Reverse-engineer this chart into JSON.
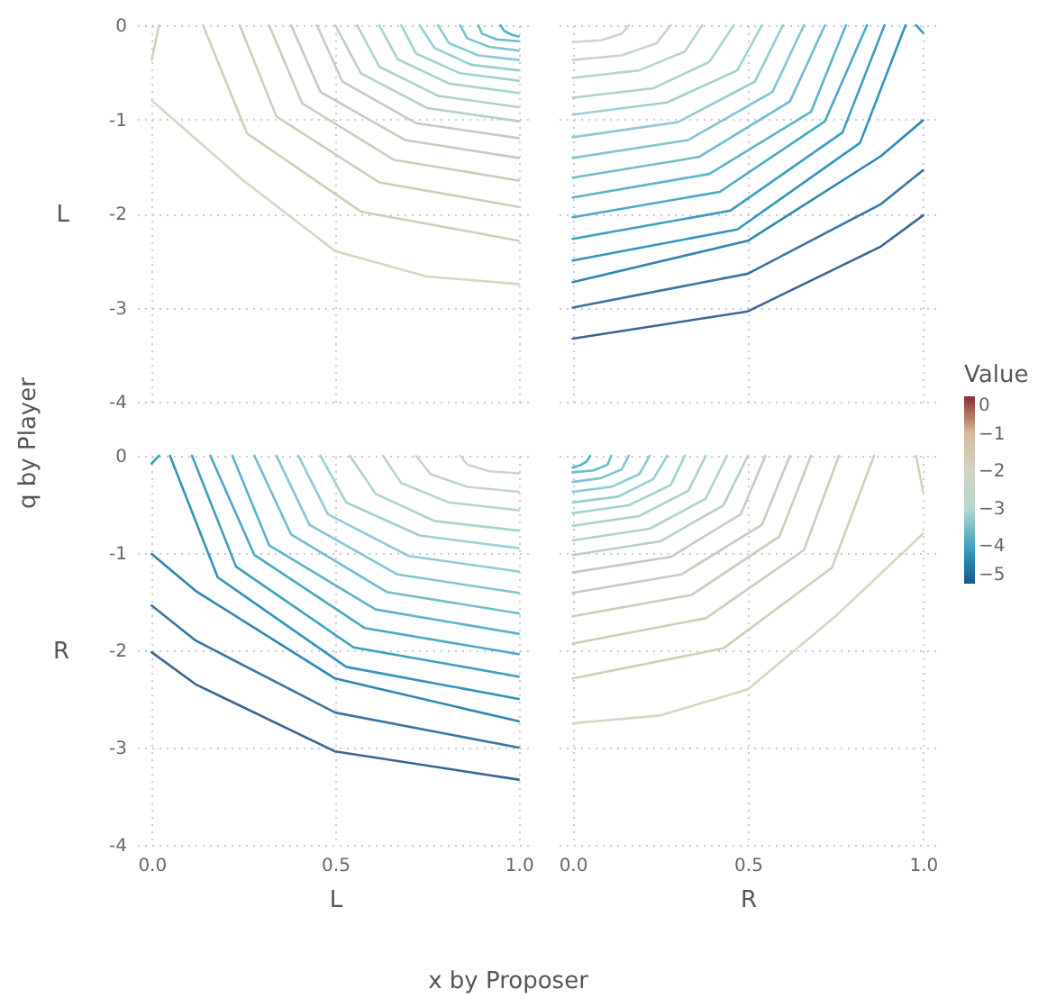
{
  "chart_data": [
    {
      "type": "line",
      "ylabel": "L",
      "xlim": [
        -0.04,
        1.04
      ],
      "ylim": [
        -4,
        0
      ],
      "xticks": [
        {
          "value": 0,
          "label": null
        },
        {
          "value": 0.5,
          "label": null
        },
        {
          "value": 1,
          "label": null
        }
      ],
      "yticks": [
        -4,
        -3,
        -2,
        -1,
        0
      ],
      "tick_labels": "y",
      "grid": true,
      "annotations": [
        "q by Player",
        "x by Proposer"
      ],
      "series": [
        {
          "color": "#ddd4c2",
          "x": [
            0,
            0.25,
            0.5,
            0.75,
            1
          ],
          "values": [
            -0.8,
            -1.65,
            -2.4,
            -2.67,
            -2.75
          ]
        },
        {
          "color": "#d8cfba",
          "x": [
            0,
            0.02
          ],
          "values": [
            -0.37,
            0
          ]
        },
        {
          "color": "#d4cdb8",
          "x": [
            0.14,
            0.26,
            0.57,
            1
          ],
          "values": [
            0,
            -1.15,
            -1.98,
            -2.29
          ]
        },
        {
          "color": "#d0cdb9",
          "x": [
            0.24,
            0.34,
            0.62,
            1
          ],
          "values": [
            0,
            -0.97,
            -1.67,
            -1.93
          ]
        },
        {
          "color": "#cccdbb",
          "x": [
            0.32,
            0.41,
            0.66,
            1
          ],
          "values": [
            0,
            -0.83,
            -1.43,
            -1.65
          ]
        },
        {
          "color": "#c6cdbd",
          "x": [
            0.38,
            0.46,
            0.69,
            1
          ],
          "values": [
            0,
            -0.71,
            -1.22,
            -1.41
          ]
        },
        {
          "color": "#c0cfc2",
          "x": [
            0.45,
            0.52,
            0.72,
            1
          ],
          "values": [
            0,
            -0.6,
            -1.04,
            -1.2
          ]
        },
        {
          "color": "#b9d1c6",
          "x": [
            0.5,
            0.57,
            0.75,
            1
          ],
          "values": [
            0,
            -0.51,
            -0.88,
            -1.02
          ]
        },
        {
          "color": "#b1d3ca",
          "x": [
            0.56,
            0.62,
            0.78,
            1
          ],
          "values": [
            0,
            -0.44,
            -0.75,
            -0.87
          ]
        },
        {
          "color": "#a9d3cd",
          "x": [
            0.62,
            0.67,
            0.81,
            1
          ],
          "values": [
            0,
            -0.36,
            -0.62,
            -0.72
          ]
        },
        {
          "color": "#a0d2d0",
          "x": [
            0.68,
            0.72,
            0.84,
            1
          ],
          "values": [
            0,
            -0.3,
            -0.51,
            -0.59
          ]
        },
        {
          "color": "#96d0d2",
          "x": [
            0.73,
            0.77,
            0.87,
            1
          ],
          "values": [
            0,
            -0.24,
            -0.42,
            -0.48
          ]
        },
        {
          "color": "#89cbd2",
          "x": [
            0.78,
            0.81,
            0.89,
            1
          ],
          "values": [
            0,
            -0.19,
            -0.32,
            -0.37
          ]
        },
        {
          "color": "#7ac5d1",
          "x": [
            0.84,
            0.86,
            0.92,
            1
          ],
          "values": [
            0,
            -0.14,
            -0.23,
            -0.27
          ]
        },
        {
          "color": "#68bccf",
          "x": [
            0.89,
            0.9,
            0.94,
            1
          ],
          "values": [
            0,
            -0.09,
            -0.15,
            -0.17
          ]
        },
        {
          "color": "#55b1cb",
          "x": [
            0.95,
            0.96,
            0.98,
            1
          ],
          "values": [
            0,
            -0.06,
            -0.1,
            -0.12
          ]
        }
      ]
    },
    {
      "type": "line",
      "xlim": [
        -0.04,
        1.04
      ],
      "ylim": [
        -4,
        0
      ],
      "xticks": [
        {
          "value": 0,
          "label": null
        },
        {
          "value": 0.5,
          "label": null
        },
        {
          "value": 1,
          "label": null
        }
      ],
      "yticks": [
        -4,
        -3,
        -2,
        -1,
        0
      ],
      "tick_labels": false,
      "grid": true,
      "clabel": "Value",
      "clim": [
        -5,
        0
      ],
      "cticks": [
        -5,
        -4,
        -3,
        -2,
        -1,
        0
      ],
      "series": [
        {
          "color": "#cfd6cb",
          "x": [
            0,
            0.08,
            0.14,
            0.16
          ],
          "values": [
            -0.18,
            -0.16,
            -0.09,
            0
          ]
        },
        {
          "color": "#c5d6cc",
          "x": [
            0,
            0.14,
            0.24,
            0.28
          ],
          "values": [
            -0.37,
            -0.32,
            -0.19,
            0
          ]
        },
        {
          "color": "#b8d5cd",
          "x": [
            0,
            0.19,
            0.32,
            0.37
          ],
          "values": [
            -0.56,
            -0.48,
            -0.28,
            0
          ]
        },
        {
          "color": "#acd3cf",
          "x": [
            0,
            0.23,
            0.39,
            0.46
          ],
          "values": [
            -0.77,
            -0.67,
            -0.39,
            0
          ]
        },
        {
          "color": "#a0d0d1",
          "x": [
            0,
            0.27,
            0.47,
            0.54
          ],
          "values": [
            -0.95,
            -0.82,
            -0.48,
            0
          ]
        },
        {
          "color": "#92cbd2",
          "x": [
            0,
            0.3,
            0.52,
            0.6
          ],
          "values": [
            -1.19,
            -1.03,
            -0.6,
            0
          ]
        },
        {
          "color": "#82c4d1",
          "x": [
            0,
            0.33,
            0.57,
            0.66
          ],
          "values": [
            -1.41,
            -1.22,
            -0.71,
            0
          ]
        },
        {
          "color": "#70bccf",
          "x": [
            0,
            0.36,
            0.62,
            0.72
          ],
          "values": [
            -1.62,
            -1.4,
            -0.81,
            0
          ]
        },
        {
          "color": "#5db3cc",
          "x": [
            0,
            0.39,
            0.68,
            0.78
          ],
          "values": [
            -1.83,
            -1.58,
            -0.92,
            0
          ]
        },
        {
          "color": "#4aa9c8",
          "x": [
            0,
            0.42,
            0.72,
            0.84
          ],
          "values": [
            -2.04,
            -1.77,
            -1.02,
            0
          ]
        },
        {
          "color": "#3a9fc3",
          "x": [
            0,
            0.45,
            0.77,
            0.89
          ],
          "values": [
            -2.27,
            -1.97,
            -1.14,
            0
          ]
        },
        {
          "color": "#2f95be",
          "x": [
            0,
            0.47,
            0.82,
            0.95
          ],
          "values": [
            -2.5,
            -2.17,
            -1.25,
            0
          ]
        },
        {
          "color": "#3a9fc3",
          "x": [
            0.98,
            1
          ],
          "values": [
            0,
            -0.08
          ]
        },
        {
          "color": "#2c87b3",
          "x": [
            0,
            0.5,
            0.88,
            1
          ],
          "values": [
            -2.73,
            -2.29,
            -1.39,
            -1.01
          ]
        },
        {
          "color": "#3a74a3",
          "x": [
            0,
            0.5,
            0.88,
            1
          ],
          "values": [
            -3,
            -2.64,
            -1.9,
            -1.54
          ]
        },
        {
          "color": "#3b6594",
          "x": [
            0,
            0.5,
            0.88,
            1
          ],
          "values": [
            -3.33,
            -3.04,
            -2.35,
            -2.02
          ]
        }
      ]
    },
    {
      "type": "line",
      "ylabel": "R",
      "xlabel": "L",
      "xlim": [
        -0.04,
        1.04
      ],
      "ylim": [
        -4,
        0
      ],
      "xticks": [
        {
          "value": 0,
          "label": "0.0"
        },
        {
          "value": 0.5,
          "label": "0.5"
        },
        {
          "value": 1,
          "label": "1.0"
        }
      ],
      "yticks": [
        -4,
        -3,
        -2,
        -1,
        0
      ],
      "grid": true,
      "series": [
        {
          "color": "#cfd6cb",
          "x": [
            0.84,
            0.86,
            0.92,
            1
          ],
          "values": [
            0,
            -0.09,
            -0.16,
            -0.18
          ]
        },
        {
          "color": "#c5d6cc",
          "x": [
            0.72,
            0.76,
            0.86,
            1
          ],
          "values": [
            0,
            -0.19,
            -0.32,
            -0.37
          ]
        },
        {
          "color": "#b8d5cd",
          "x": [
            0.63,
            0.68,
            0.81,
            1
          ],
          "values": [
            0,
            -0.28,
            -0.48,
            -0.56
          ]
        },
        {
          "color": "#acd3cf",
          "x": [
            0.54,
            0.61,
            0.77,
            1
          ],
          "values": [
            0,
            -0.39,
            -0.67,
            -0.77
          ]
        },
        {
          "color": "#a0d0d1",
          "x": [
            0.46,
            0.53,
            0.73,
            1
          ],
          "values": [
            0,
            -0.48,
            -0.82,
            -0.95
          ]
        },
        {
          "color": "#92cbd2",
          "x": [
            0.4,
            0.48,
            0.7,
            1
          ],
          "values": [
            0,
            -0.6,
            -1.03,
            -1.19
          ]
        },
        {
          "color": "#82c4d1",
          "x": [
            0.34,
            0.43,
            0.67,
            1
          ],
          "values": [
            0,
            -0.71,
            -1.22,
            -1.41
          ]
        },
        {
          "color": "#70bccf",
          "x": [
            0.28,
            0.38,
            0.64,
            1
          ],
          "values": [
            0,
            -0.81,
            -1.4,
            -1.62
          ]
        },
        {
          "color": "#5db3cc",
          "x": [
            0.22,
            0.32,
            0.61,
            1
          ],
          "values": [
            0,
            -0.92,
            -1.58,
            -1.83
          ]
        },
        {
          "color": "#4aa9c8",
          "x": [
            0.16,
            0.28,
            0.58,
            1
          ],
          "values": [
            0,
            -1.02,
            -1.77,
            -2.04
          ]
        },
        {
          "color": "#3a9fc3",
          "x": [
            0.11,
            0.23,
            0.55,
            1
          ],
          "values": [
            0,
            -1.14,
            -1.97,
            -2.27
          ]
        },
        {
          "color": "#2f95be",
          "x": [
            0.05,
            0.18,
            0.53,
            1
          ],
          "values": [
            0,
            -1.25,
            -2.17,
            -2.5
          ]
        },
        {
          "color": "#3a9fc3",
          "x": [
            0,
            0.02
          ],
          "values": [
            -0.08,
            0
          ]
        },
        {
          "color": "#2c87b3",
          "x": [
            0,
            0.12,
            0.5,
            1
          ],
          "values": [
            -1.01,
            -1.39,
            -2.29,
            -2.73
          ]
        },
        {
          "color": "#3a74a3",
          "x": [
            0,
            0.12,
            0.5,
            1
          ],
          "values": [
            -1.54,
            -1.9,
            -2.64,
            -3
          ]
        },
        {
          "color": "#3b6594",
          "x": [
            0,
            0.12,
            0.5,
            1
          ],
          "values": [
            -2.02,
            -2.35,
            -3.04,
            -3.33
          ]
        }
      ]
    },
    {
      "type": "line",
      "xlabel": "R",
      "xlim": [
        -0.04,
        1.04
      ],
      "ylim": [
        -4,
        0
      ],
      "xticks": [
        {
          "value": 0,
          "label": "0.0"
        },
        {
          "value": 0.5,
          "label": "0.5"
        },
        {
          "value": 1,
          "label": "1.0"
        }
      ],
      "yticks": [
        -4,
        -3,
        -2,
        -1,
        0
      ],
      "tick_labels": "x",
      "grid": true,
      "series": [
        {
          "color": "#ddd4c2",
          "x": [
            0,
            0.25,
            0.5,
            0.75,
            1
          ],
          "values": [
            -2.75,
            -2.67,
            -2.4,
            -1.65,
            -0.8
          ]
        },
        {
          "color": "#d8cfba",
          "x": [
            0.98,
            1
          ],
          "values": [
            0,
            -0.37
          ]
        },
        {
          "color": "#d4cdb8",
          "x": [
            0,
            0.43,
            0.74,
            0.86
          ],
          "values": [
            -2.29,
            -1.98,
            -1.15,
            0
          ]
        },
        {
          "color": "#d0cdb9",
          "x": [
            0,
            0.38,
            0.66,
            0.76
          ],
          "values": [
            -1.93,
            -1.67,
            -0.97,
            0
          ]
        },
        {
          "color": "#cccdbb",
          "x": [
            0,
            0.34,
            0.59,
            0.68
          ],
          "values": [
            -1.65,
            -1.43,
            -0.83,
            0
          ]
        },
        {
          "color": "#c6cdbd",
          "x": [
            0,
            0.31,
            0.54,
            0.62
          ],
          "values": [
            -1.41,
            -1.22,
            -0.71,
            0
          ]
        },
        {
          "color": "#c0cfc2",
          "x": [
            0,
            0.28,
            0.48,
            0.55
          ],
          "values": [
            -1.2,
            -1.04,
            -0.6,
            0
          ]
        },
        {
          "color": "#b9d1c6",
          "x": [
            0,
            0.25,
            0.43,
            0.5
          ],
          "values": [
            -1.02,
            -0.88,
            -0.51,
            0
          ]
        },
        {
          "color": "#b1d3ca",
          "x": [
            0,
            0.22,
            0.38,
            0.44
          ],
          "values": [
            -0.87,
            -0.75,
            -0.44,
            0
          ]
        },
        {
          "color": "#a9d3cd",
          "x": [
            0,
            0.19,
            0.33,
            0.38
          ],
          "values": [
            -0.72,
            -0.62,
            -0.36,
            0
          ]
        },
        {
          "color": "#a0d2d0",
          "x": [
            0,
            0.16,
            0.28,
            0.32
          ],
          "values": [
            -0.59,
            -0.51,
            -0.3,
            0
          ]
        },
        {
          "color": "#96d0d2",
          "x": [
            0,
            0.13,
            0.23,
            0.27
          ],
          "values": [
            -0.48,
            -0.42,
            -0.24,
            0
          ]
        },
        {
          "color": "#89cbd2",
          "x": [
            0,
            0.11,
            0.19,
            0.22
          ],
          "values": [
            -0.37,
            -0.32,
            -0.19,
            0
          ]
        },
        {
          "color": "#7ac5d1",
          "x": [
            0,
            0.08,
            0.14,
            0.16
          ],
          "values": [
            -0.27,
            -0.23,
            -0.14,
            0
          ]
        },
        {
          "color": "#68bccf",
          "x": [
            0,
            0.06,
            0.1,
            0.11
          ],
          "values": [
            -0.17,
            -0.15,
            -0.09,
            0
          ]
        },
        {
          "color": "#55b1cb",
          "x": [
            0,
            0.02,
            0.04,
            0.05
          ],
          "values": [
            -0.12,
            -0.1,
            -0.06,
            0
          ]
        }
      ]
    }
  ]
}
